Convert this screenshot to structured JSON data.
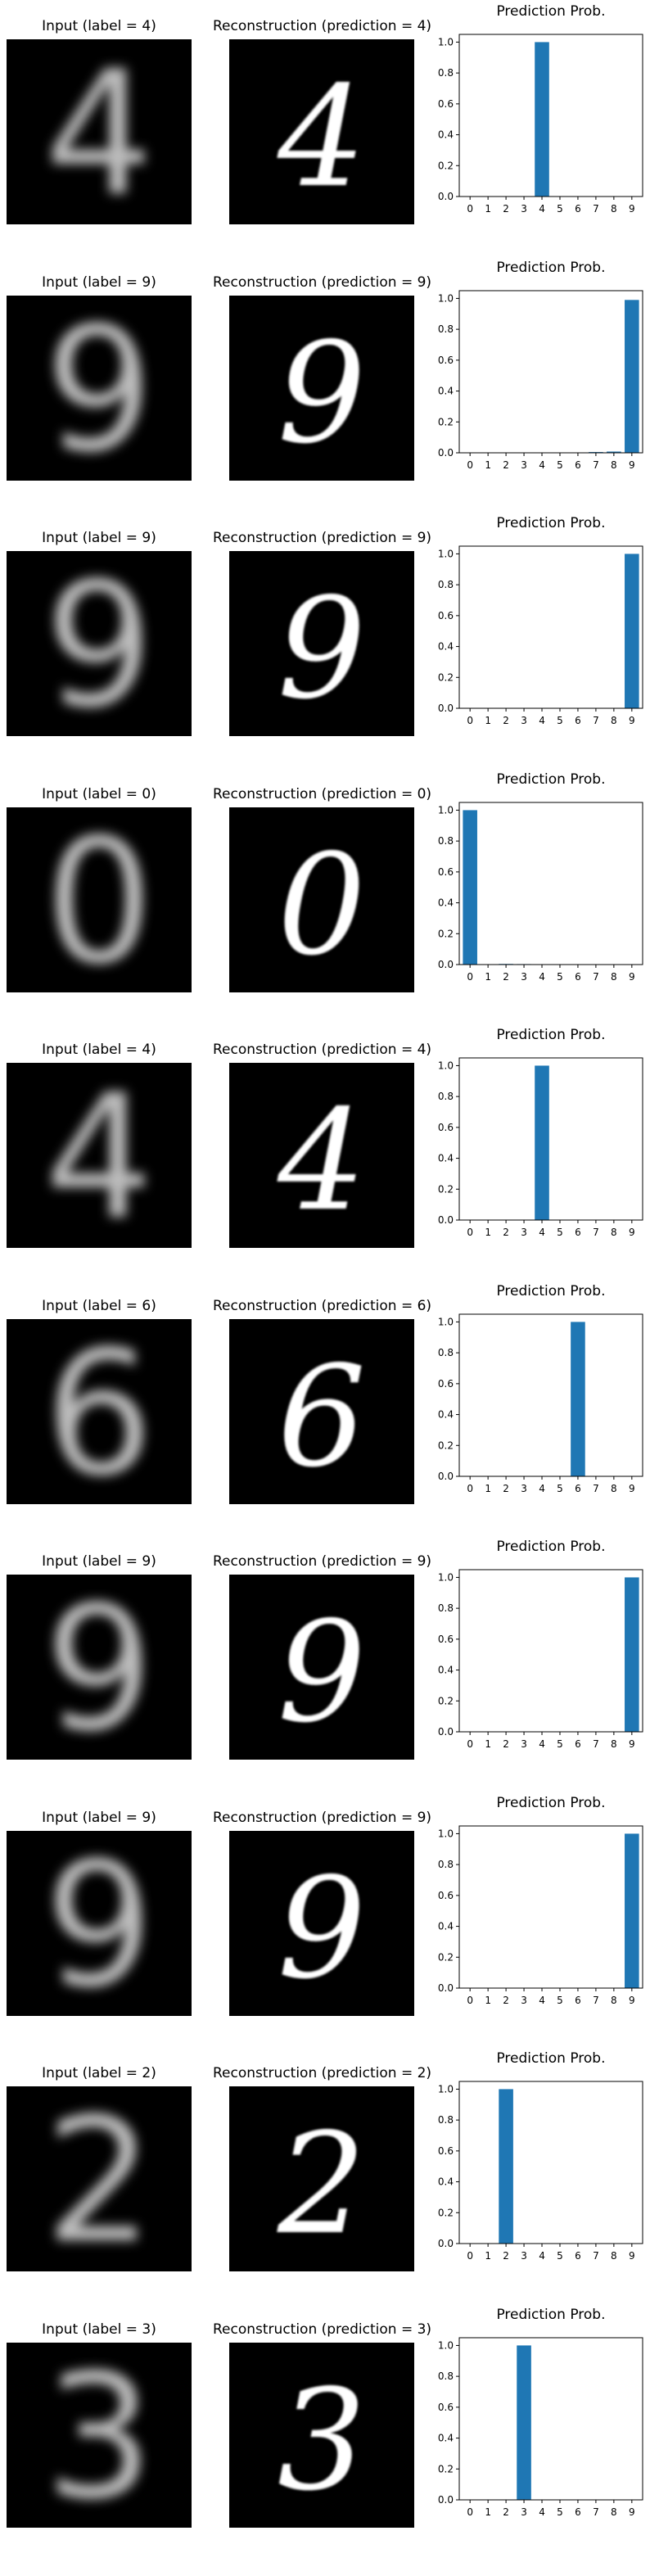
{
  "chart_data": [
    {
      "type": "bar",
      "input_title": "Input (label = 4)",
      "recon_title": "Reconstruction (prediction = 4)",
      "title": "Prediction Prob.",
      "categories": [
        "0",
        "1",
        "2",
        "3",
        "4",
        "5",
        "6",
        "7",
        "8",
        "9"
      ],
      "values": [
        0,
        0,
        0,
        0,
        1.0,
        0,
        0,
        0,
        0,
        0
      ],
      "ylim": [
        0,
        1.05
      ],
      "yticks": [
        "0.0",
        "0.2",
        "0.4",
        "0.6",
        "0.8",
        "1.0"
      ],
      "digit": "4"
    },
    {
      "type": "bar",
      "input_title": "Input (label = 9)",
      "recon_title": "Reconstruction (prediction = 9)",
      "title": "Prediction Prob.",
      "categories": [
        "0",
        "1",
        "2",
        "3",
        "4",
        "5",
        "6",
        "7",
        "8",
        "9"
      ],
      "values": [
        0,
        0,
        0,
        0,
        0,
        0,
        0,
        0.005,
        0.008,
        0.99
      ],
      "ylim": [
        0,
        1.05
      ],
      "yticks": [
        "0.0",
        "0.2",
        "0.4",
        "0.6",
        "0.8",
        "1.0"
      ],
      "digit": "9"
    },
    {
      "type": "bar",
      "input_title": "Input (label = 9)",
      "recon_title": "Reconstruction (prediction = 9)",
      "title": "Prediction Prob.",
      "categories": [
        "0",
        "1",
        "2",
        "3",
        "4",
        "5",
        "6",
        "7",
        "8",
        "9"
      ],
      "values": [
        0,
        0,
        0,
        0,
        0,
        0,
        0,
        0,
        0,
        1.0
      ],
      "ylim": [
        0,
        1.05
      ],
      "yticks": [
        "0.0",
        "0.2",
        "0.4",
        "0.6",
        "0.8",
        "1.0"
      ],
      "digit": "9"
    },
    {
      "type": "bar",
      "input_title": "Input (label = 0)",
      "recon_title": "Reconstruction (prediction = 0)",
      "title": "Prediction Prob.",
      "categories": [
        "0",
        "1",
        "2",
        "3",
        "4",
        "5",
        "6",
        "7",
        "8",
        "9"
      ],
      "values": [
        1.0,
        0,
        0.004,
        0.003,
        0,
        0,
        0,
        0,
        0,
        0
      ],
      "ylim": [
        0,
        1.05
      ],
      "yticks": [
        "0.0",
        "0.2",
        "0.4",
        "0.6",
        "0.8",
        "1.0"
      ],
      "digit": "0"
    },
    {
      "type": "bar",
      "input_title": "Input (label = 4)",
      "recon_title": "Reconstruction (prediction = 4)",
      "title": "Prediction Prob.",
      "categories": [
        "0",
        "1",
        "2",
        "3",
        "4",
        "5",
        "6",
        "7",
        "8",
        "9"
      ],
      "values": [
        0,
        0,
        0,
        0,
        1.0,
        0,
        0,
        0,
        0,
        0
      ],
      "ylim": [
        0,
        1.05
      ],
      "yticks": [
        "0.0",
        "0.2",
        "0.4",
        "0.6",
        "0.8",
        "1.0"
      ],
      "digit": "4"
    },
    {
      "type": "bar",
      "input_title": "Input (label = 6)",
      "recon_title": "Reconstruction (prediction = 6)",
      "title": "Prediction Prob.",
      "categories": [
        "0",
        "1",
        "2",
        "3",
        "4",
        "5",
        "6",
        "7",
        "8",
        "9"
      ],
      "values": [
        0,
        0,
        0,
        0,
        0,
        0,
        1.0,
        0,
        0,
        0
      ],
      "ylim": [
        0,
        1.05
      ],
      "yticks": [
        "0.0",
        "0.2",
        "0.4",
        "0.6",
        "0.8",
        "1.0"
      ],
      "digit": "6"
    },
    {
      "type": "bar",
      "input_title": "Input (label = 9)",
      "recon_title": "Reconstruction (prediction = 9)",
      "title": "Prediction Prob.",
      "categories": [
        "0",
        "1",
        "2",
        "3",
        "4",
        "5",
        "6",
        "7",
        "8",
        "9"
      ],
      "values": [
        0,
        0,
        0,
        0,
        0,
        0,
        0,
        0,
        0,
        1.0
      ],
      "ylim": [
        0,
        1.05
      ],
      "yticks": [
        "0.0",
        "0.2",
        "0.4",
        "0.6",
        "0.8",
        "1.0"
      ],
      "digit": "9"
    },
    {
      "type": "bar",
      "input_title": "Input (label = 9)",
      "recon_title": "Reconstruction (prediction = 9)",
      "title": "Prediction Prob.",
      "categories": [
        "0",
        "1",
        "2",
        "3",
        "4",
        "5",
        "6",
        "7",
        "8",
        "9"
      ],
      "values": [
        0,
        0,
        0,
        0,
        0,
        0,
        0,
        0,
        0,
        1.0
      ],
      "ylim": [
        0,
        1.05
      ],
      "yticks": [
        "0.0",
        "0.2",
        "0.4",
        "0.6",
        "0.8",
        "1.0"
      ],
      "digit": "9"
    },
    {
      "type": "bar",
      "input_title": "Input (label = 2)",
      "recon_title": "Reconstruction (prediction = 2)",
      "title": "Prediction Prob.",
      "categories": [
        "0",
        "1",
        "2",
        "3",
        "4",
        "5",
        "6",
        "7",
        "8",
        "9"
      ],
      "values": [
        0,
        0,
        1.0,
        0,
        0,
        0,
        0,
        0,
        0,
        0
      ],
      "ylim": [
        0,
        1.05
      ],
      "yticks": [
        "0.0",
        "0.2",
        "0.4",
        "0.6",
        "0.8",
        "1.0"
      ],
      "digit": "2"
    },
    {
      "type": "bar",
      "input_title": "Input (label = 3)",
      "recon_title": "Reconstruction (prediction = 3)",
      "title": "Prediction Prob.",
      "categories": [
        "0",
        "1",
        "2",
        "3",
        "4",
        "5",
        "6",
        "7",
        "8",
        "9"
      ],
      "values": [
        0,
        0,
        0,
        1.0,
        0,
        0,
        0,
        0,
        0,
        0
      ],
      "ylim": [
        0,
        1.05
      ],
      "yticks": [
        "0.0",
        "0.2",
        "0.4",
        "0.6",
        "0.8",
        "1.0"
      ],
      "digit": "3"
    }
  ],
  "colors": {
    "bar": "#1f77b4",
    "digit_input": "#bdbdbd",
    "digit_recon": "#ffffff"
  }
}
